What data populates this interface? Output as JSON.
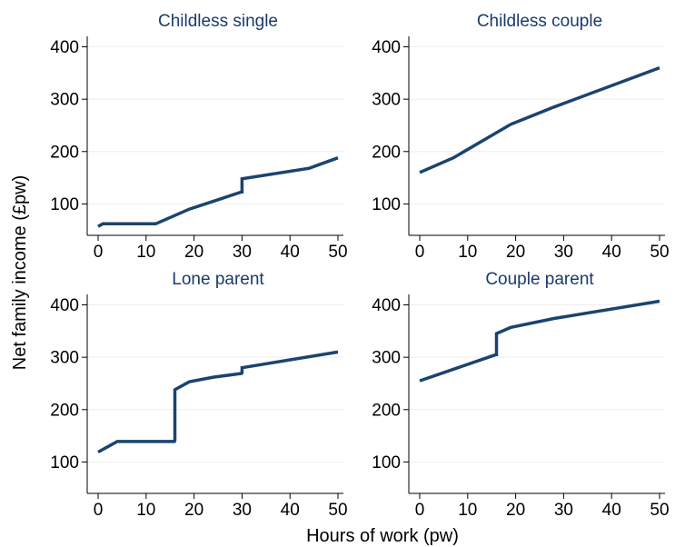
{
  "figure": {
    "ylabel": "Net family income (£pw)",
    "xlabel": "Hours of work (pw)"
  },
  "colors": {
    "line": "#1a446e",
    "title": "#1a3a6b",
    "grid": "#eeeeee"
  },
  "chart_data": [
    {
      "type": "line",
      "title": "Childless single",
      "xlim": [
        0,
        50
      ],
      "ylim": [
        40,
        420
      ],
      "xticks": [
        0,
        10,
        20,
        30,
        40,
        50
      ],
      "yticks": [
        100,
        200,
        300,
        400
      ],
      "grid": true,
      "series": [
        {
          "x": [
            0,
            1,
            12,
            19,
            25,
            29.9,
            30,
            30,
            44,
            50
          ],
          "y": [
            57,
            62,
            62,
            90,
            108,
            123,
            123,
            148,
            168,
            188
          ]
        }
      ]
    },
    {
      "type": "line",
      "title": "Childless couple",
      "xlim": [
        0,
        50
      ],
      "ylim": [
        40,
        420
      ],
      "xticks": [
        0,
        10,
        20,
        30,
        40,
        50
      ],
      "yticks": [
        100,
        200,
        300,
        400
      ],
      "grid": true,
      "series": [
        {
          "x": [
            0,
            7,
            19,
            28,
            50
          ],
          "y": [
            160,
            188,
            252,
            285,
            360
          ]
        }
      ]
    },
    {
      "type": "line",
      "title": "Lone parent",
      "xlim": [
        0,
        50
      ],
      "ylim": [
        40,
        420
      ],
      "xticks": [
        0,
        10,
        20,
        30,
        40,
        50
      ],
      "yticks": [
        100,
        200,
        300,
        400
      ],
      "grid": true,
      "series": [
        {
          "x": [
            0,
            4,
            15.9,
            16,
            16,
            19,
            24,
            29.9,
            30,
            30,
            50
          ],
          "y": [
            119,
            139,
            139,
            141,
            238,
            253,
            262,
            269,
            270,
            280,
            310
          ]
        }
      ]
    },
    {
      "type": "line",
      "title": "Couple parent",
      "xlim": [
        0,
        50
      ],
      "ylim": [
        40,
        420
      ],
      "xticks": [
        0,
        10,
        20,
        30,
        40,
        50
      ],
      "yticks": [
        100,
        200,
        300,
        400
      ],
      "grid": true,
      "series": [
        {
          "x": [
            0,
            15.9,
            16,
            16,
            19,
            28,
            50
          ],
          "y": [
            255,
            305,
            305,
            345,
            357,
            374,
            407
          ]
        }
      ]
    }
  ]
}
